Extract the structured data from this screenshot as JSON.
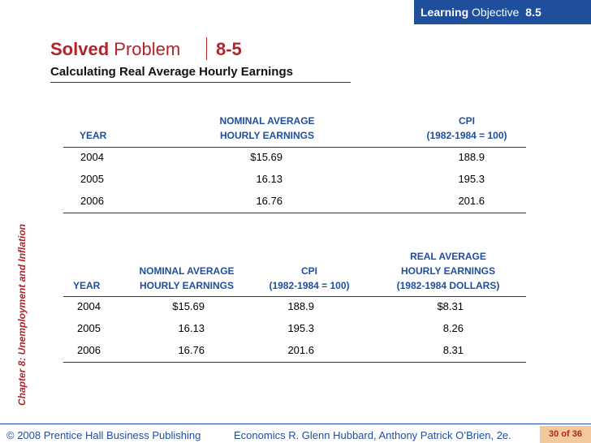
{
  "header": {
    "learning_word": "Learning",
    "objective_word": "Objective",
    "objective_number": "8.5"
  },
  "title": {
    "solved": "Solved",
    "problem": "Problem",
    "number": "8-5"
  },
  "subtitle": "Calculating Real Average Hourly Earnings",
  "sidebar": "Chapter 8:  Unemployment and Inflation",
  "tables": [
    {
      "columns": [
        [
          "YEAR"
        ],
        [
          "NOMINAL AVERAGE",
          "HOURLY EARNINGS"
        ],
        [
          "CPI",
          "(1982-1984 = 100)"
        ]
      ],
      "rows": [
        [
          "2004",
          "$15.69",
          "188.9"
        ],
        [
          "2005",
          "16.13",
          "195.3"
        ],
        [
          "2006",
          "16.76",
          "201.6"
        ]
      ]
    },
    {
      "columns": [
        [
          "YEAR"
        ],
        [
          "NOMINAL AVERAGE",
          "HOURLY EARNINGS"
        ],
        [
          "CPI",
          "(1982-1984 = 100)"
        ],
        [
          "REAL AVERAGE",
          "HOURLY EARNINGS",
          "(1982-1984 DOLLARS)"
        ]
      ],
      "rows": [
        [
          "2004",
          "$15.69",
          "188.9",
          "$8.31"
        ],
        [
          "2005",
          "16.13",
          "195.3",
          "8.26"
        ],
        [
          "2006",
          "16.76",
          "201.6",
          "8.31"
        ]
      ]
    }
  ],
  "footer": {
    "publisher": "© 2008 Prentice Hall Business Publishing",
    "book": "Economics  R. Glenn Hubbard, Anthony Patrick O’Brien, 2e.",
    "page": "30 of 36"
  }
}
